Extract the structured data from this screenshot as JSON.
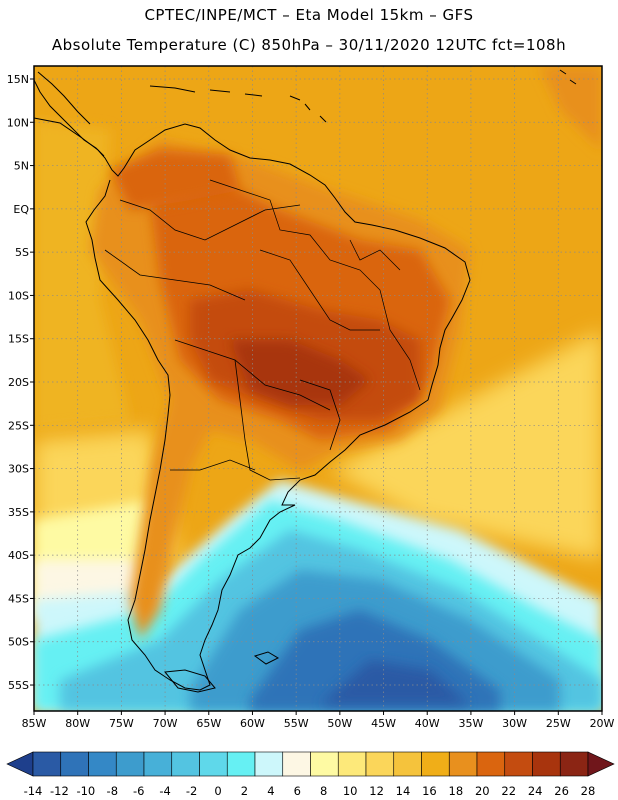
{
  "header": {
    "line1": "CPTEC/INPE/MCT –  Eta Model 15km – GFS",
    "line2": "Absolute Temperature (C) 850hPa – 30/11/2020 12UTC fct=108h"
  },
  "map": {
    "lat_labels": [
      "15N",
      "10N",
      "5N",
      "EQ",
      "5S",
      "10S",
      "15S",
      "20S",
      "25S",
      "30S",
      "35S",
      "40S",
      "45S",
      "50S",
      "55S"
    ],
    "lon_labels": [
      "85W",
      "80W",
      "75W",
      "70W",
      "65W",
      "60W",
      "55W",
      "50W",
      "45W",
      "40W",
      "35W",
      "30W",
      "25W",
      "20W"
    ],
    "lat_range": [
      -58,
      16.5
    ],
    "lon_range": [
      -85,
      -20
    ],
    "fields": {
      "land": "#e8901e",
      "ocean_warm": "#eda616",
      "heat_core": "#b8470e",
      "cold_core": "#2d86c1"
    }
  },
  "colorbar": {
    "ticks": [
      "-14",
      "-12",
      "-10",
      "-8",
      "-6",
      "-4",
      "-2",
      "0",
      "2",
      "4",
      "6",
      "8",
      "10",
      "12",
      "14",
      "16",
      "18",
      "20",
      "22",
      "24",
      "26",
      "28"
    ],
    "colors": [
      "#1e3f8c",
      "#2a5aa5",
      "#2f73b8",
      "#3488c6",
      "#3d9ccd",
      "#47b0d8",
      "#53c4e1",
      "#5fd8ea",
      "#66f0f3",
      "#cdf7fb",
      "#fdf7e4",
      "#fefaa3",
      "#fde97a",
      "#fbd65a",
      "#f5c33c",
      "#f0ae18",
      "#e8901e",
      "#da650f",
      "#c44c10",
      "#a8340d",
      "#8b2514",
      "#70161b"
    ]
  }
}
